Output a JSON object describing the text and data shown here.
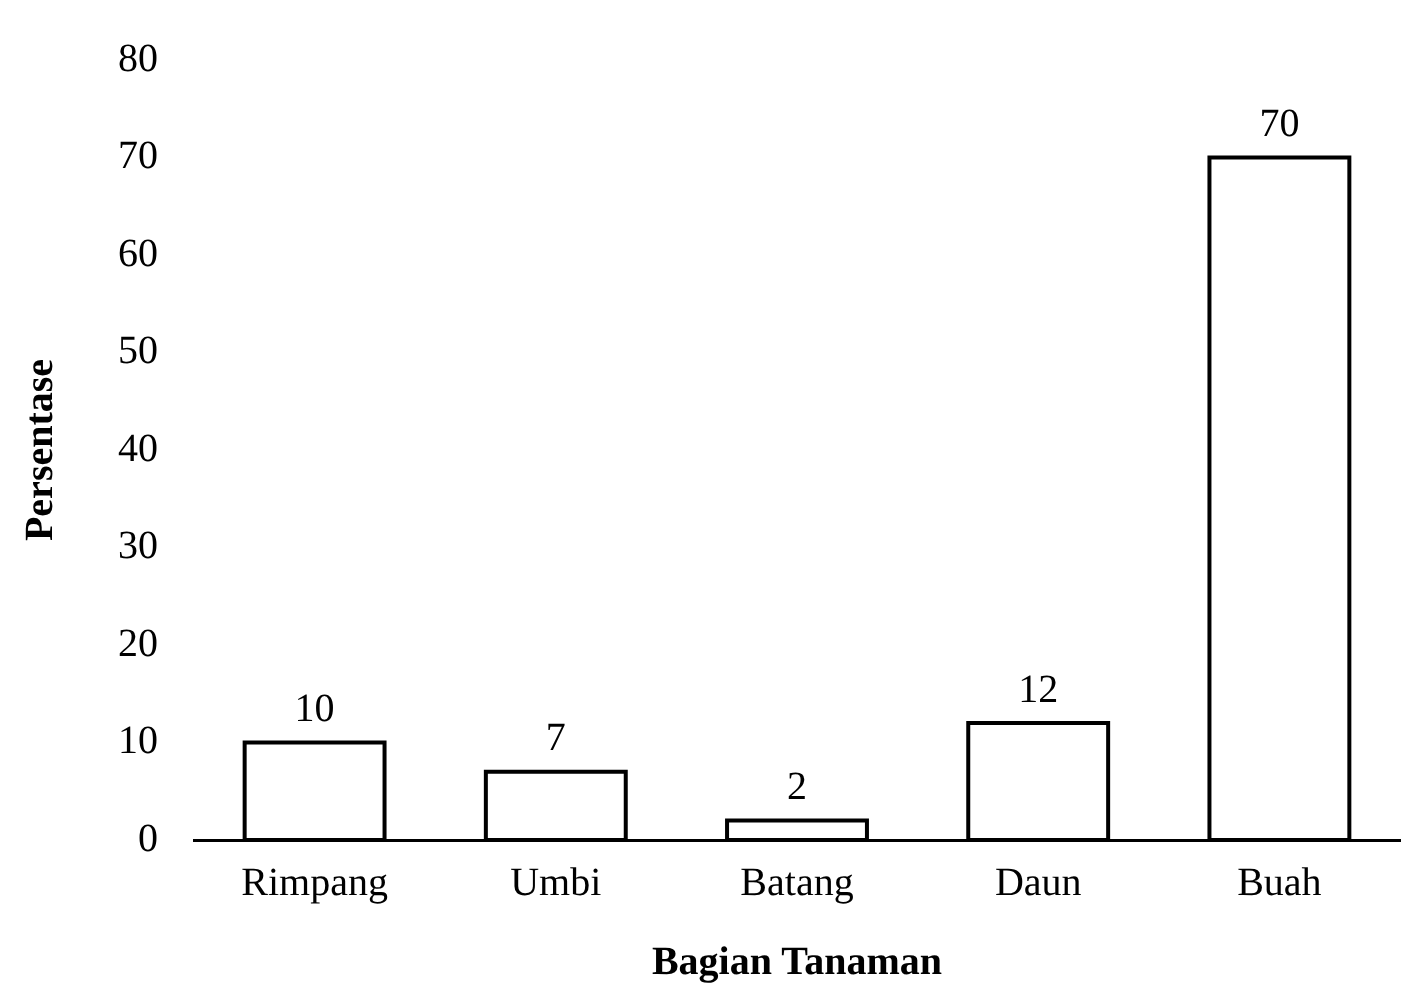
{
  "chart_data": {
    "type": "bar",
    "xlabel": "Bagian Tanaman",
    "ylabel": "Persentase",
    "categories": [
      "Rimpang",
      "Umbi",
      "Batang",
      "Daun",
      "Buah"
    ],
    "values": [
      10,
      7,
      2,
      12,
      70
    ],
    "color": "#000000",
    "ylim": [
      0,
      80
    ],
    "yticks": [
      0,
      10,
      20,
      30,
      40,
      50,
      60,
      70,
      80
    ],
    "data_labels": true,
    "grid": false,
    "legend": false
  }
}
